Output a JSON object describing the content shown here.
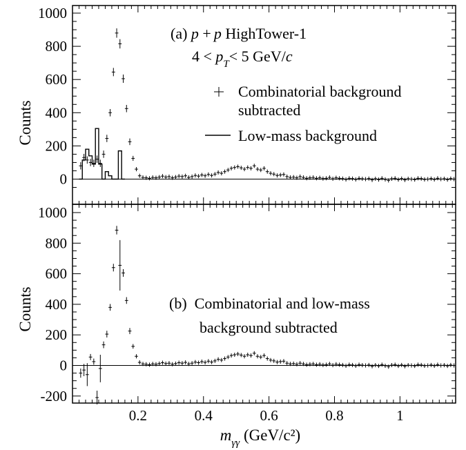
{
  "x_axis_label": {
    "m": "m",
    "sub": "γγ",
    "rest": " (GeV/c²)"
  },
  "chart_data": [
    {
      "type": "scatter",
      "panel": "a",
      "xlabel": "m_γγ (GeV/c²)",
      "ylabel": "Counts",
      "xlim": [
        0.0,
        1.17
      ],
      "ylim": [
        -75,
        1020
      ],
      "x_ticks": [
        0.2,
        0.4,
        0.6,
        0.8,
        1.0
      ],
      "y_ticks": [
        0,
        200,
        400,
        600,
        800,
        1000
      ],
      "y_tick_labels": [
        "0",
        "200",
        "400",
        "600",
        "800",
        "1000"
      ],
      "annotation": {
        "line1": {
          "tag": "(a) ",
          "p1": "p",
          "plus": " +",
          "p2": "p",
          "rest": " HighTower-1"
        },
        "line2": {
          "pre": "4 < ",
          "p": "p",
          "sub": "T",
          "post": "< 5 GeV/",
          "c": "c"
        }
      },
      "legend": [
        {
          "marker": "cross",
          "label_lines": [
            "Combinatorial background",
            "subtracted"
          ]
        },
        {
          "marker": "line",
          "label_lines": [
            "Low-mass background"
          ]
        }
      ],
      "series": [
        {
          "name": "Combinatorial background subtracted",
          "marker": "cross",
          "x": [
            0.025,
            0.035,
            0.045,
            0.055,
            0.065,
            0.075,
            0.085,
            0.095,
            0.105,
            0.115,
            0.125,
            0.135,
            0.145,
            0.155,
            0.165,
            0.175,
            0.185,
            0.195,
            0.205,
            0.215,
            0.225,
            0.235,
            0.245,
            0.255,
            0.265,
            0.275,
            0.285,
            0.295,
            0.305,
            0.315,
            0.325,
            0.335,
            0.345,
            0.355,
            0.365,
            0.375,
            0.385,
            0.395,
            0.405,
            0.415,
            0.425,
            0.435,
            0.445,
            0.455,
            0.465,
            0.475,
            0.485,
            0.495,
            0.505,
            0.515,
            0.525,
            0.535,
            0.545,
            0.555,
            0.565,
            0.575,
            0.585,
            0.595,
            0.605,
            0.615,
            0.625,
            0.635,
            0.645,
            0.655,
            0.665,
            0.675,
            0.685,
            0.695,
            0.705,
            0.715,
            0.725,
            0.735,
            0.745,
            0.755,
            0.765,
            0.775,
            0.785,
            0.795,
            0.805,
            0.815,
            0.825,
            0.835,
            0.845,
            0.855,
            0.865,
            0.875,
            0.885,
            0.895,
            0.905,
            0.915,
            0.925,
            0.935,
            0.945,
            0.955,
            0.965,
            0.975,
            0.985,
            0.995,
            1.005,
            1.015,
            1.025,
            1.035,
            1.045,
            1.055,
            1.065,
            1.075,
            1.085,
            1.095,
            1.105,
            1.115,
            1.125,
            1.135,
            1.145,
            1.155,
            1.165
          ],
          "y": [
            80,
            130,
            115,
            100,
            95,
            120,
            95,
            150,
            245,
            400,
            645,
            880,
            815,
            605,
            425,
            225,
            125,
            60,
            20,
            10,
            8,
            5,
            10,
            8,
            12,
            18,
            12,
            15,
            8,
            12,
            18,
            15,
            20,
            10,
            15,
            22,
            18,
            25,
            20,
            28,
            22,
            30,
            40,
            35,
            45,
            55,
            65,
            70,
            75,
            68,
            60,
            70,
            65,
            80,
            60,
            55,
            65,
            45,
            35,
            30,
            22,
            25,
            28,
            15,
            10,
            12,
            8,
            15,
            10,
            5,
            8,
            10,
            5,
            8,
            3,
            5,
            10,
            2,
            8,
            5,
            3,
            -2,
            5,
            3,
            -2,
            5,
            2,
            0,
            3,
            -5,
            2,
            -3,
            5,
            -2,
            -8,
            2,
            5,
            -3,
            3,
            -5,
            2,
            0,
            -3,
            5,
            3,
            -2,
            0,
            3,
            -2,
            5,
            0,
            2,
            -3,
            3,
            0
          ],
          "err": [
            22,
            22,
            22,
            22,
            22,
            22,
            22,
            22,
            22,
            22,
            25,
            28,
            28,
            25,
            22,
            20,
            15,
            10,
            8,
            8,
            8,
            8,
            8,
            8,
            8,
            8,
            8,
            8,
            8,
            8,
            8,
            8,
            8,
            8,
            8,
            8,
            8,
            8,
            8,
            8,
            8,
            8,
            8,
            8,
            8,
            8,
            8,
            8,
            8,
            8,
            8,
            8,
            8,
            8,
            8,
            8,
            8,
            8,
            8,
            8,
            8,
            8,
            8,
            8,
            8,
            8,
            8,
            8,
            8,
            8,
            8,
            8,
            8,
            8,
            8,
            8,
            8,
            8,
            8,
            8,
            8,
            8,
            8,
            8,
            8,
            8,
            8,
            8,
            8,
            8,
            8,
            8,
            8,
            8,
            8,
            8,
            8,
            8,
            8,
            8,
            8,
            8,
            8,
            8,
            8,
            8,
            8,
            8,
            8,
            8,
            8,
            8,
            8,
            8,
            8
          ]
        },
        {
          "name": "Low-mass background",
          "type": "step",
          "bin_edges": [
            0.02,
            0.03,
            0.04,
            0.05,
            0.06,
            0.07,
            0.08,
            0.09,
            0.1,
            0.11,
            0.12,
            0.13,
            0.14,
            0.15,
            0.16
          ],
          "values": [
            0,
            115,
            180,
            140,
            90,
            305,
            90,
            0,
            45,
            20,
            0,
            0,
            170,
            0
          ]
        }
      ]
    },
    {
      "type": "scatter",
      "panel": "b",
      "xlabel": "m_γγ (GeV/c²)",
      "ylabel": "Counts",
      "xlim": [
        0.0,
        1.17
      ],
      "ylim": [
        -240,
        1020
      ],
      "x_ticks": [
        0.2,
        0.4,
        0.6,
        0.8,
        1.0
      ],
      "x_tick_labels": [
        "0.2",
        "0.4",
        "0.6",
        "0.8",
        "1"
      ],
      "y_ticks": [
        -200,
        0,
        200,
        400,
        600,
        800,
        1000
      ],
      "y_tick_labels": [
        "-200",
        "0",
        "200",
        "400",
        "600",
        "800",
        "1000"
      ],
      "annotation": {
        "line1": "(b)  Combinatorial and low-mass",
        "line2": "background subtracted"
      },
      "series": [
        {
          "name": "Combinatorial and low-mass background subtracted",
          "marker": "cross",
          "x": [
            0.025,
            0.035,
            0.045,
            0.055,
            0.065,
            0.075,
            0.085,
            0.095,
            0.105,
            0.115,
            0.125,
            0.135,
            0.145,
            0.155,
            0.165,
            0.175,
            0.185,
            0.195,
            0.205,
            0.215,
            0.225,
            0.235,
            0.245,
            0.255,
            0.265,
            0.275,
            0.285,
            0.295,
            0.305,
            0.315,
            0.325,
            0.335,
            0.345,
            0.355,
            0.365,
            0.375,
            0.385,
            0.395,
            0.405,
            0.415,
            0.425,
            0.435,
            0.445,
            0.455,
            0.465,
            0.475,
            0.485,
            0.495,
            0.505,
            0.515,
            0.525,
            0.535,
            0.545,
            0.555,
            0.565,
            0.575,
            0.585,
            0.595,
            0.605,
            0.615,
            0.625,
            0.635,
            0.645,
            0.655,
            0.665,
            0.675,
            0.685,
            0.695,
            0.705,
            0.715,
            0.725,
            0.735,
            0.745,
            0.755,
            0.765,
            0.775,
            0.785,
            0.795,
            0.805,
            0.815,
            0.825,
            0.835,
            0.845,
            0.855,
            0.865,
            0.875,
            0.885,
            0.895,
            0.905,
            0.915,
            0.925,
            0.935,
            0.945,
            0.955,
            0.965,
            0.975,
            0.985,
            0.995,
            1.005,
            1.015,
            1.025,
            1.035,
            1.045,
            1.055,
            1.065,
            1.075,
            1.085,
            1.095,
            1.105,
            1.115,
            1.125,
            1.135,
            1.145,
            1.155,
            1.165
          ],
          "y": [
            -50,
            -30,
            -60,
            55,
            25,
            -210,
            -20,
            135,
            205,
            380,
            640,
            885,
            655,
            605,
            425,
            225,
            125,
            60,
            20,
            10,
            8,
            5,
            10,
            8,
            12,
            18,
            12,
            15,
            8,
            12,
            18,
            15,
            20,
            10,
            15,
            22,
            18,
            25,
            20,
            28,
            22,
            30,
            40,
            35,
            45,
            55,
            65,
            70,
            75,
            68,
            60,
            70,
            65,
            80,
            60,
            55,
            65,
            45,
            35,
            30,
            22,
            25,
            28,
            15,
            10,
            12,
            8,
            15,
            10,
            5,
            8,
            10,
            5,
            8,
            3,
            5,
            10,
            2,
            8,
            5,
            3,
            -2,
            5,
            3,
            -2,
            5,
            2,
            0,
            3,
            -5,
            2,
            -3,
            5,
            -2,
            -8,
            2,
            5,
            -3,
            3,
            -5,
            2,
            0,
            -3,
            5,
            3,
            -2,
            0,
            3,
            -2,
            5,
            0,
            2,
            -3,
            3,
            0
          ],
          "err": [
            30,
            40,
            75,
            20,
            20,
            45,
            90,
            22,
            22,
            22,
            25,
            28,
            165,
            25,
            22,
            20,
            15,
            10,
            8,
            8,
            8,
            8,
            8,
            8,
            8,
            8,
            8,
            8,
            8,
            8,
            8,
            8,
            8,
            8,
            8,
            8,
            8,
            8,
            8,
            8,
            8,
            8,
            8,
            8,
            8,
            8,
            8,
            8,
            8,
            8,
            8,
            8,
            8,
            8,
            8,
            8,
            8,
            8,
            8,
            8,
            8,
            8,
            8,
            8,
            8,
            8,
            8,
            8,
            8,
            8,
            8,
            8,
            8,
            8,
            8,
            8,
            8,
            8,
            8,
            8,
            8,
            8,
            8,
            8,
            8,
            8,
            8,
            8,
            8,
            8,
            8,
            8,
            8,
            8,
            8,
            8,
            8,
            8,
            8,
            8,
            8,
            8,
            8,
            8,
            8,
            8,
            8,
            8,
            8,
            8,
            8,
            8,
            8,
            8,
            8
          ]
        }
      ]
    }
  ]
}
